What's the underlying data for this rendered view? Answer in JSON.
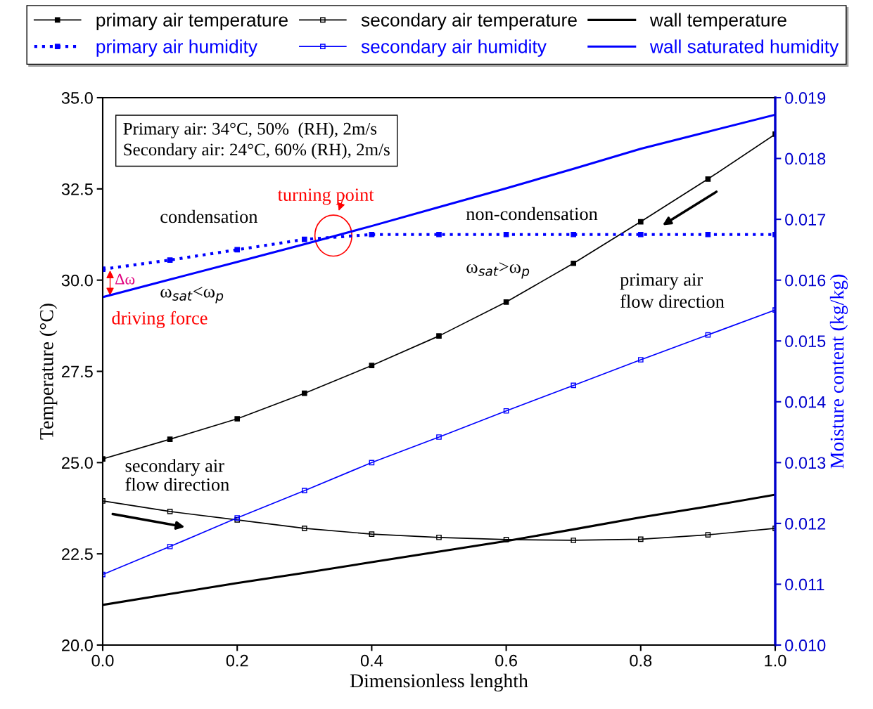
{
  "chart_data": {
    "type": "line",
    "xlabel": "Dimensionless lenghth",
    "ylabel": "Temperature (°C)",
    "y2label": "Moisture content (kg/kg)",
    "x": [
      0,
      0.1,
      0.2,
      0.3,
      0.4,
      0.5,
      0.6,
      0.7,
      0.8,
      0.9,
      1.0
    ],
    "series": [
      {
        "name": "primary air temperature",
        "color": "#000000",
        "marker": "square",
        "values": [
          25.1,
          25.64,
          26.2,
          26.9,
          27.66,
          28.47,
          29.4,
          30.46,
          31.6,
          32.77,
          34.0
        ]
      },
      {
        "name": "secondary air temperature",
        "color": "#000000",
        "marker": "square_open",
        "values": [
          23.95,
          23.66,
          23.43,
          23.2,
          23.04,
          22.95,
          22.89,
          22.87,
          22.9,
          23.02,
          23.2
        ]
      },
      {
        "name": "wall temperature",
        "color": "#000000",
        "marker": "none",
        "values": [
          21.1,
          21.4,
          21.7,
          21.98,
          22.27,
          22.56,
          22.85,
          23.17,
          23.5,
          23.8,
          24.12
        ]
      },
      {
        "name": "primary air humidity",
        "color": "#0000ff",
        "marker": "square",
        "axis": "y2",
        "line_style": "dotted",
        "values": [
          0.01618,
          0.01633,
          0.0165,
          0.01667,
          0.01675,
          0.01675,
          0.01675,
          0.01675,
          0.01675,
          0.01675,
          0.01675
        ]
      },
      {
        "name": "secondary air humidity",
        "color": "#0000ff",
        "marker": "square_open",
        "axis": "y2",
        "values": [
          0.01116,
          0.01162,
          0.01209,
          0.01254,
          0.013,
          0.01342,
          0.01385,
          0.01427,
          0.01469,
          0.0151,
          0.01551
        ]
      },
      {
        "name": "wall saturated humidity",
        "color": "#0000ff",
        "marker": "none",
        "axis": "y2",
        "values": [
          0.01572,
          0.01601,
          0.0163,
          0.01659,
          0.01689,
          0.0172,
          0.01751,
          0.01783,
          0.01816,
          0.01844,
          0.01872
        ]
      }
    ],
    "xlim": [
      0,
      1.0
    ],
    "xticks": [
      {
        "value": 0,
        "label": "0.0"
      },
      0.2,
      0.4,
      0.6,
      0.8,
      {
        "value": 1.0,
        "label": "1.0"
      }
    ],
    "ylim": [
      20,
      35
    ],
    "yticks": [
      {
        "value": 20,
        "label": "20.0"
      },
      22.5,
      {
        "value": 25,
        "label": "25.0"
      },
      27.5,
      {
        "value": 30,
        "label": "30.0"
      },
      32.5,
      {
        "value": 35,
        "label": "35.0"
      }
    ],
    "y2lim": [
      0.01,
      0.019
    ],
    "y2ticks": [
      {
        "value": 0.01,
        "label": "0.010"
      },
      0.011,
      0.012,
      0.013,
      0.014,
      0.015,
      0.016,
      0.017,
      0.018,
      0.019
    ],
    "legend": "top",
    "grid": false,
    "annotations": [
      "Primary air: 34°C, 50%  (RH), 2m/s\nSecondary air: 24°C, 60% (RH), 2m/s",
      "turning point",
      "condensation",
      "ω$_{sat}$<ω$_{p}$",
      "non-condensation",
      "ω$_{sat}$>ω$_{p}$",
      "primary air\nflow direction",
      "secondary air\nflow direction",
      "Δω",
      "driving force"
    ]
  }
}
